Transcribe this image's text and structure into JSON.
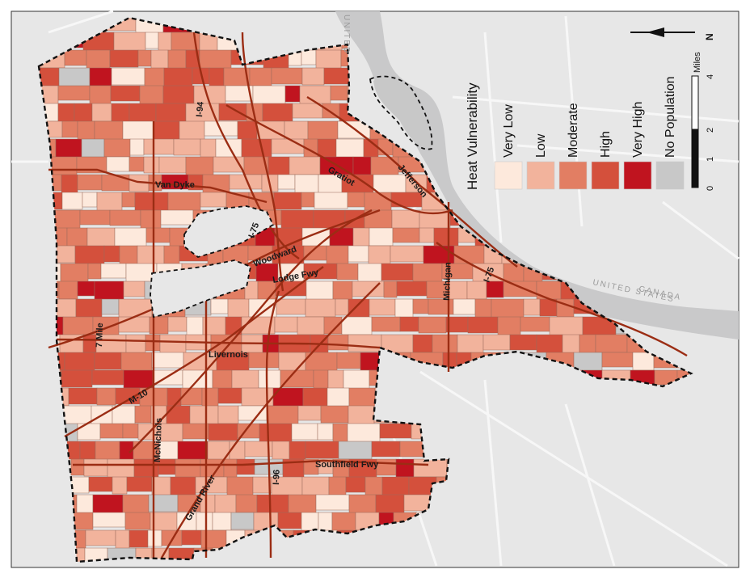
{
  "map": {
    "colors": {
      "background": "#e7e7e7",
      "water": "#c9c9ca",
      "river_edge": "#b8b8b9",
      "tract_outline": "#9a6a5a",
      "city_boundary": "#111111",
      "road": "#9b2d14",
      "street": "#f7f7f7"
    },
    "neighbors_labels": {
      "united_states": "UNITED STATES",
      "canada": "CANADA",
      "top_label": "UNITED"
    },
    "roads": [
      {
        "id": "i94",
        "label": "I-94"
      },
      {
        "id": "van-dyke",
        "label": "Van Dyke"
      },
      {
        "id": "gratiot",
        "label": "Gratiot"
      },
      {
        "id": "jefferson",
        "label": "Jefferson"
      },
      {
        "id": "i75",
        "label": "I-75"
      },
      {
        "id": "woodward",
        "label": "Woodward"
      },
      {
        "id": "lodge-fwy",
        "label": "Lodge Fwy"
      },
      {
        "id": "michigan",
        "label": "Michigan"
      },
      {
        "id": "i75-south",
        "label": "I-75"
      },
      {
        "id": "7-mile",
        "label": "7 Mile"
      },
      {
        "id": "livernois",
        "label": "Livernois"
      },
      {
        "id": "m10",
        "label": "M-10"
      },
      {
        "id": "mcnichols",
        "label": "McNichols"
      },
      {
        "id": "grand-river",
        "label": "Grand River"
      },
      {
        "id": "i96",
        "label": "I-96"
      },
      {
        "id": "southfield-fwy",
        "label": "Southfield Fwy"
      }
    ]
  },
  "legend": {
    "title": "Heat Vulnerability",
    "classes": [
      {
        "label": "Very Low",
        "color": "#fde9dc"
      },
      {
        "label": "Low",
        "color": "#f2b39c"
      },
      {
        "label": "Moderate",
        "color": "#e27e63"
      },
      {
        "label": "High",
        "color": "#d4503c"
      },
      {
        "label": "Very High",
        "color": "#c0141f"
      },
      {
        "label": "No Population",
        "color": "#c8c8c8"
      }
    ]
  },
  "scale_bar": {
    "unit": "Miles",
    "ticks": [
      "0",
      "1",
      "2",
      "4"
    ]
  },
  "north_arrow": {
    "label": "N"
  }
}
